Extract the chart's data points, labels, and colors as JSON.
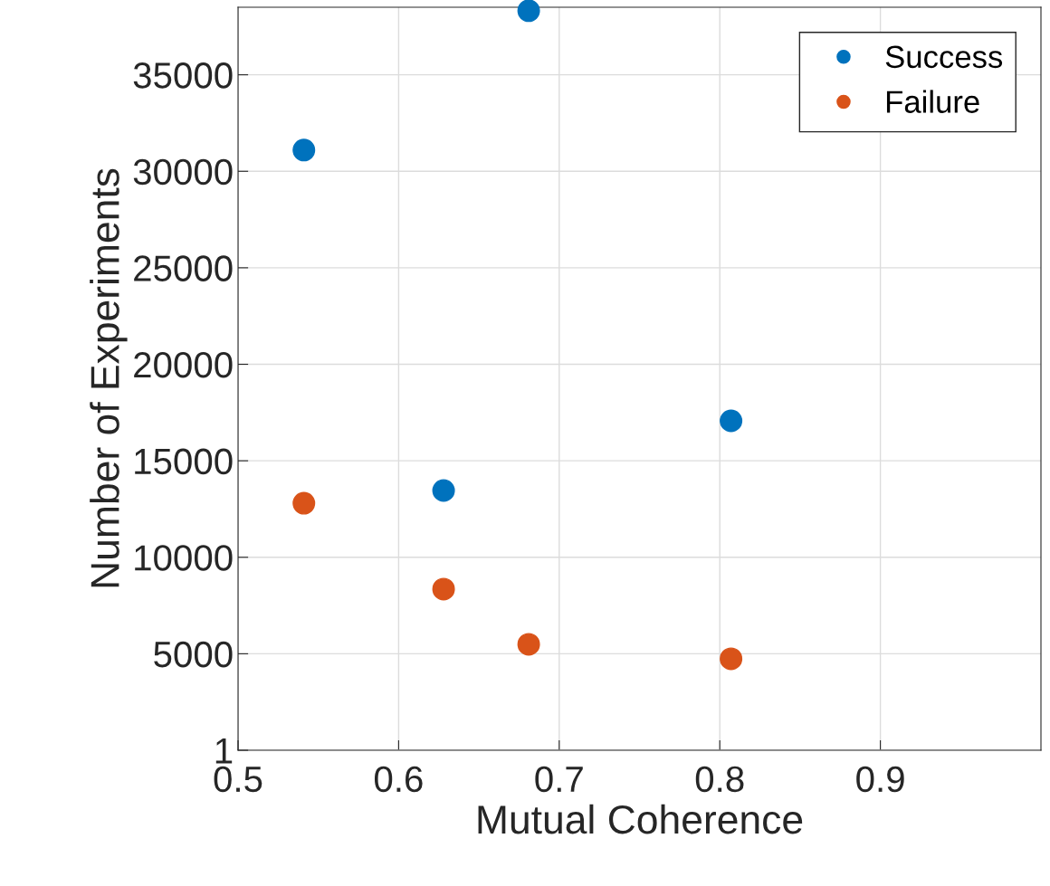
{
  "chart_data": {
    "type": "scatter",
    "xlabel": "Mutual Coherence",
    "ylabel": "Number of Experiments",
    "x": [
      0.541,
      0.628,
      0.681,
      0.807
    ],
    "series": [
      {
        "name": "Success",
        "color": "#0072bd",
        "values": [
          31100,
          13460,
          38320,
          17070
        ]
      },
      {
        "name": "Failure",
        "color": "#d95319",
        "values": [
          12800,
          8350,
          5490,
          4740
        ]
      }
    ],
    "xlim": [
      0.5,
      1.0
    ],
    "xticks": [
      0.5,
      0.6,
      0.7,
      0.8,
      0.9
    ],
    "ylim": [
      1,
      38500
    ],
    "yticks": [
      1,
      5000,
      10000,
      15000,
      20000,
      25000,
      30000,
      35000
    ],
    "grid": true,
    "legend": "top right",
    "marker": "circle"
  }
}
